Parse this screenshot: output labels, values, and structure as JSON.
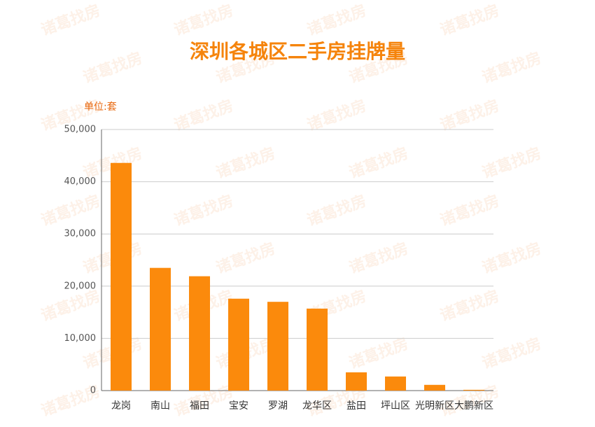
{
  "chart_data": {
    "type": "bar",
    "title": "深圳各城区二手房挂牌量",
    "y_label": "单位:套",
    "watermark": "诸葛找房",
    "categories": [
      "龙岗",
      "南山",
      "福田",
      "宝安",
      "罗湖",
      "龙华区",
      "盐田",
      "坪山区",
      "光明新区",
      "大鹏新区"
    ],
    "values": [
      43600,
      23500,
      21900,
      17600,
      17000,
      15700,
      3500,
      2700,
      1100,
      150
    ],
    "color": "#fb8a0c",
    "ylim": [
      0,
      50000
    ],
    "yticks": [
      0,
      {
        "value": 10000,
        "label": "10,000"
      },
      {
        "value": 20000,
        "label": "20,000"
      },
      {
        "value": 30000,
        "label": "30,000"
      },
      {
        "value": 40000,
        "label": "40,000"
      },
      {
        "value": 50000,
        "label": "50,000"
      }
    ],
    "grid": true
  }
}
